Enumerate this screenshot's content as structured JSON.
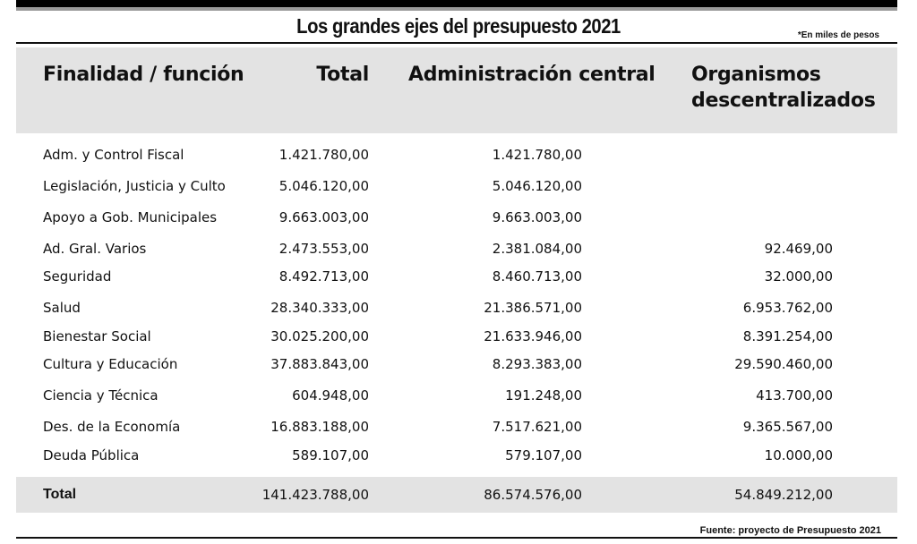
{
  "title": "Los grandes ejes del presupuesto 2021",
  "units_note": "*En miles de pesos",
  "headers": {
    "col0": "Finalidad / función",
    "col1": "Total",
    "col2": "Administración central",
    "col3_line1": "Organismos",
    "col3_line2": "descentralizados"
  },
  "rows": [
    {
      "label": "Adm. y Control Fiscal",
      "total": "1.421.780,00",
      "central": "1.421.780,00",
      "desc": ""
    },
    {
      "label": "Legislación, Justicia y Culto",
      "total": "5.046.120,00",
      "central": "5.046.120,00",
      "desc": ""
    },
    {
      "label": "Apoyo a Gob. Municipales",
      "total": "9.663.003,00",
      "central": "9.663.003,00",
      "desc": ""
    },
    {
      "label": "Ad. Gral. Varios",
      "total": "2.473.553,00",
      "central": "2.381.084,00",
      "desc": "92.469,00"
    },
    {
      "label": "Seguridad",
      "total": "8.492.713,00",
      "central": "8.460.713,00",
      "desc": "32.000,00"
    },
    {
      "label": "Salud",
      "total": "28.340.333,00",
      "central": "21.386.571,00",
      "desc": "6.953.762,00"
    },
    {
      "label": "Bienestar Social",
      "total": "30.025.200,00",
      "central": "21.633.946,00",
      "desc": "8.391.254,00"
    },
    {
      "label": "Cultura y Educación",
      "total": "37.883.843,00",
      "central": "8.293.383,00",
      "desc": "29.590.460,00"
    },
    {
      "label": "Ciencia y Técnica",
      "total": "604.948,00",
      "central": "191.248,00",
      "desc": "413.700,00"
    },
    {
      "label": "Des. de la Economía",
      "total": "16.883.188,00",
      "central": "7.517.621,00",
      "desc": "9.365.567,00"
    },
    {
      "label": "Deuda Pública",
      "total": "589.107,00",
      "central": "579.107,00",
      "desc": "10.000,00"
    }
  ],
  "totals": {
    "label": "Total",
    "total": "141.423.788,00",
    "central": "86.574.576,00",
    "desc": "54.849.212,00"
  },
  "source": "Fuente: proyecto de Presupuesto 2021"
}
